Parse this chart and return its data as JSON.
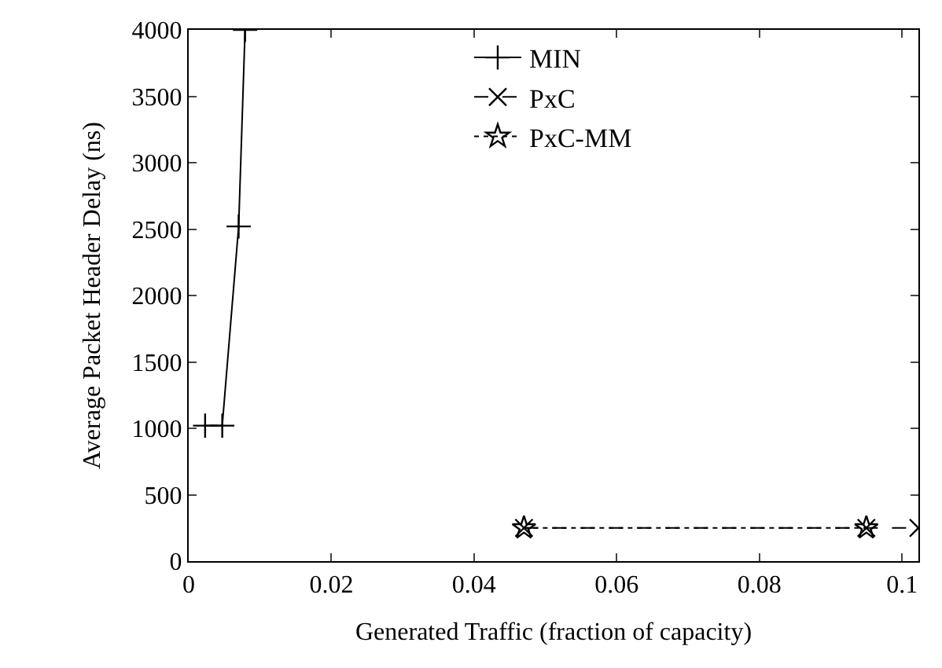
{
  "chart_data": {
    "type": "line",
    "xlabel": "Generated Traffic (fraction of capacity)",
    "ylabel": "Average Packet Header Delay (ns)",
    "xlim": [
      0,
      0.1023
    ],
    "xticks": [
      0,
      0.02,
      0.04,
      0.06,
      0.08,
      0.1
    ],
    "ylim": [
      0,
      4000
    ],
    "yticks": [
      0,
      500,
      1000,
      1500,
      2000,
      2500,
      3000,
      3500,
      4000
    ],
    "legend": "top",
    "series": [
      {
        "name": "MIN",
        "color": "#000000",
        "marker": "cross",
        "line_style": "solid",
        "x": [
          0.0023,
          0.0047,
          0.007,
          0.0079
        ],
        "values": [
          1020,
          1020,
          2520,
          4000
        ]
      },
      {
        "name": "PxC",
        "color": "#000000",
        "marker": "x",
        "line_style": "dashed",
        "x": [
          0.047,
          0.095,
          0.1023
        ],
        "values": [
          250,
          250,
          250
        ]
      },
      {
        "name": "PxC-MM",
        "color": "#000000",
        "marker": "star",
        "line_style": "dotted",
        "x": [
          0.047,
          0.095
        ],
        "values": [
          250,
          250
        ]
      }
    ]
  }
}
